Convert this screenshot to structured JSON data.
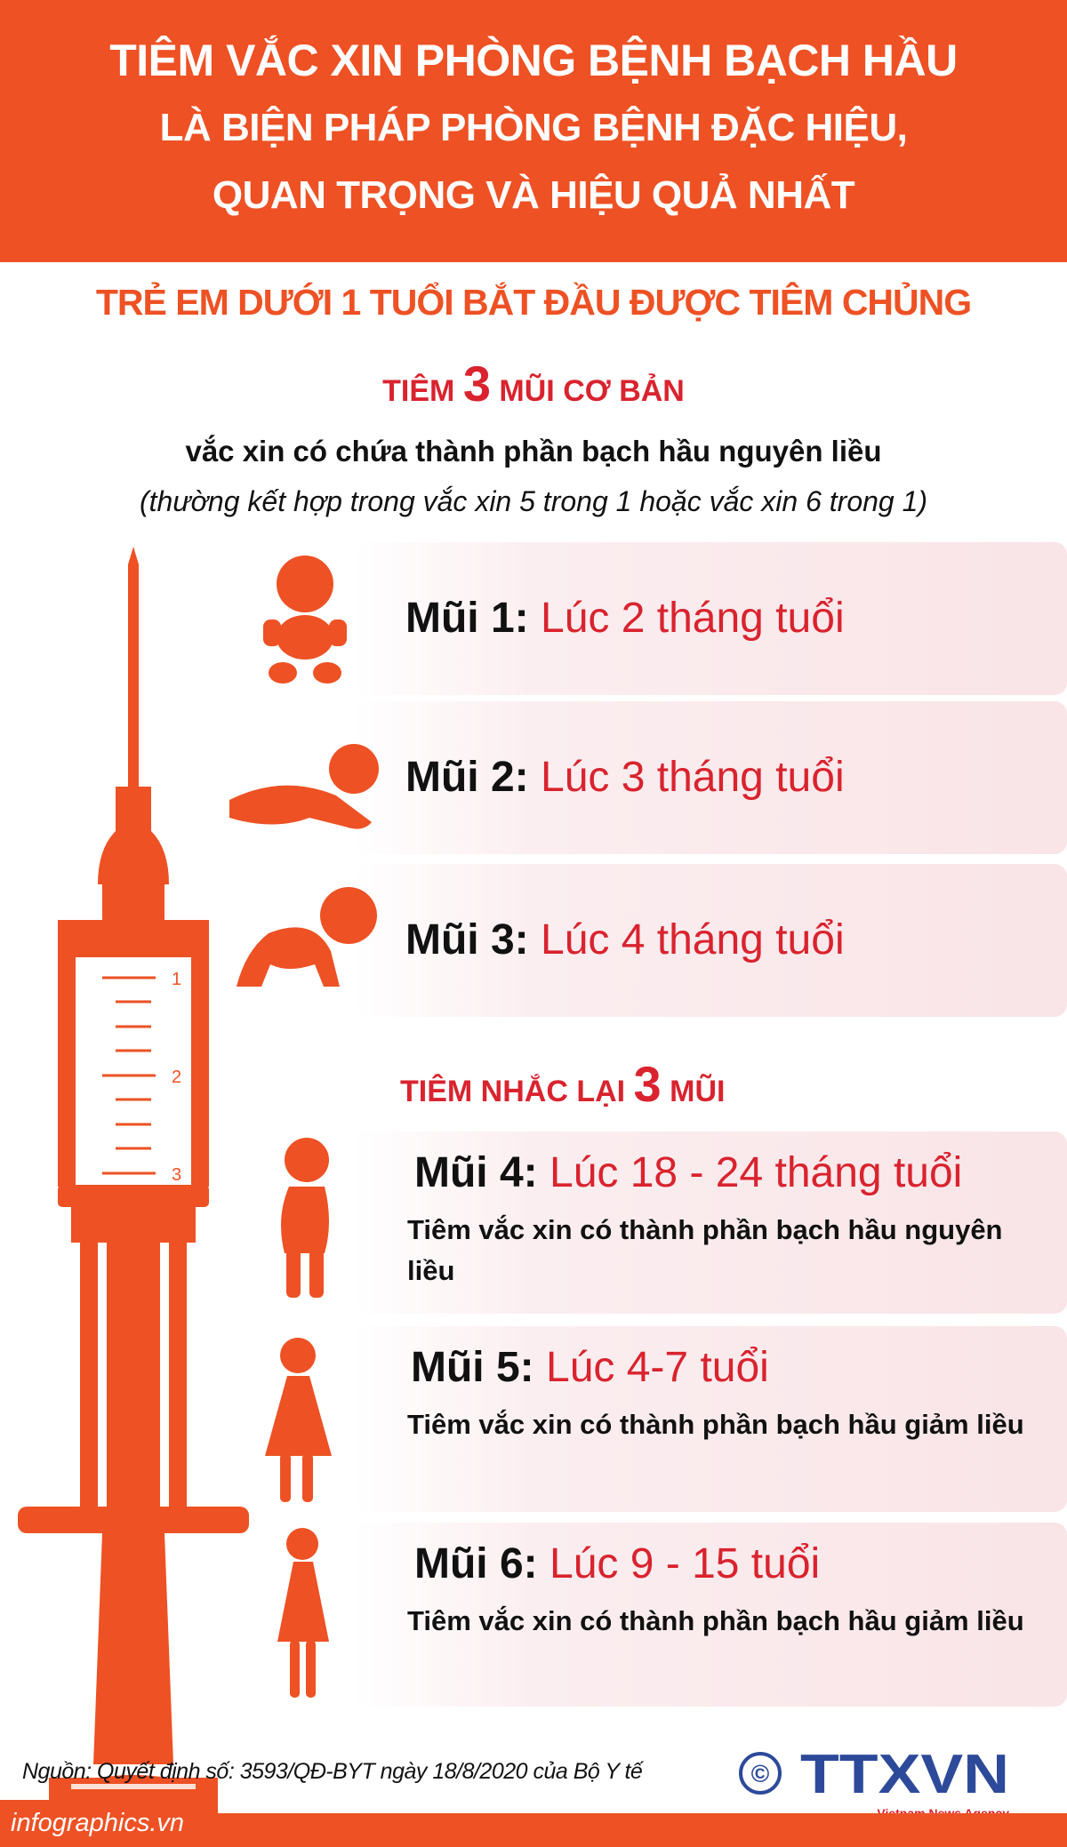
{
  "header": {
    "line1": "TIÊM VẮC XIN PHÒNG BỆNH BẠCH HẦU",
    "line2": "LÀ BIỆN PHÁP PHÒNG BỆNH ĐẶC HIỆU,",
    "line3": "QUAN TRỌNG VÀ HIỆU QUẢ NHẤT"
  },
  "subtitle": "TRẺ EM DƯỚI 1 TUỔI BẮT ĐẦU ĐƯỢC TIÊM CHỦNG",
  "basic": {
    "prefix": "TIÊM",
    "count": "3",
    "suffix": "MŨI CƠ BẢN",
    "desc": "vắc xin có chứa thành phần bạch hầu nguyên liều",
    "note": "(thường kết hợp trong vắc xin 5 trong 1 hoặc vắc xin 6 trong 1)"
  },
  "booster": {
    "prefix": "TIÊM NHẮC LẠI",
    "count": "3",
    "suffix": "MŨI"
  },
  "doses": [
    {
      "label": "Mũi 1:",
      "time": "Lúc 2 tháng tuổi"
    },
    {
      "label": "Mũi 2:",
      "time": "Lúc 3 tháng tuổi"
    },
    {
      "label": "Mũi 3:",
      "time": "Lúc 4 tháng tuổi"
    },
    {
      "label": "Mũi 4:",
      "time": "Lúc 18 - 24 tháng tuổi",
      "desc": "Tiêm vắc xin có thành phần bạch hầu nguyên liều"
    },
    {
      "label": "Mũi 5:",
      "time": "Lúc 4-7 tuổi",
      "desc": "Tiêm vắc xin có thành phần bạch hầu giảm liều"
    },
    {
      "label": "Mũi 6:",
      "time": "Lúc 9 - 15 tuổi",
      "desc": "Tiêm vắc xin có thành phần bạch hầu giảm liều"
    }
  ],
  "syringe": {
    "marks": [
      "1",
      "2",
      "3"
    ]
  },
  "source": "Nguồn: Quyết định số: 3593/QĐ-BYT ngày 18/8/2020 của Bộ Y tế",
  "footer": {
    "site": "infographics.vn",
    "logo": "TTXVN",
    "logo_sub": "Vietnam News Agency",
    "copyright": "©"
  },
  "colors": {
    "orange": "#ee5124",
    "red": "#d9232e",
    "logo_blue": "#2d4a9a"
  }
}
